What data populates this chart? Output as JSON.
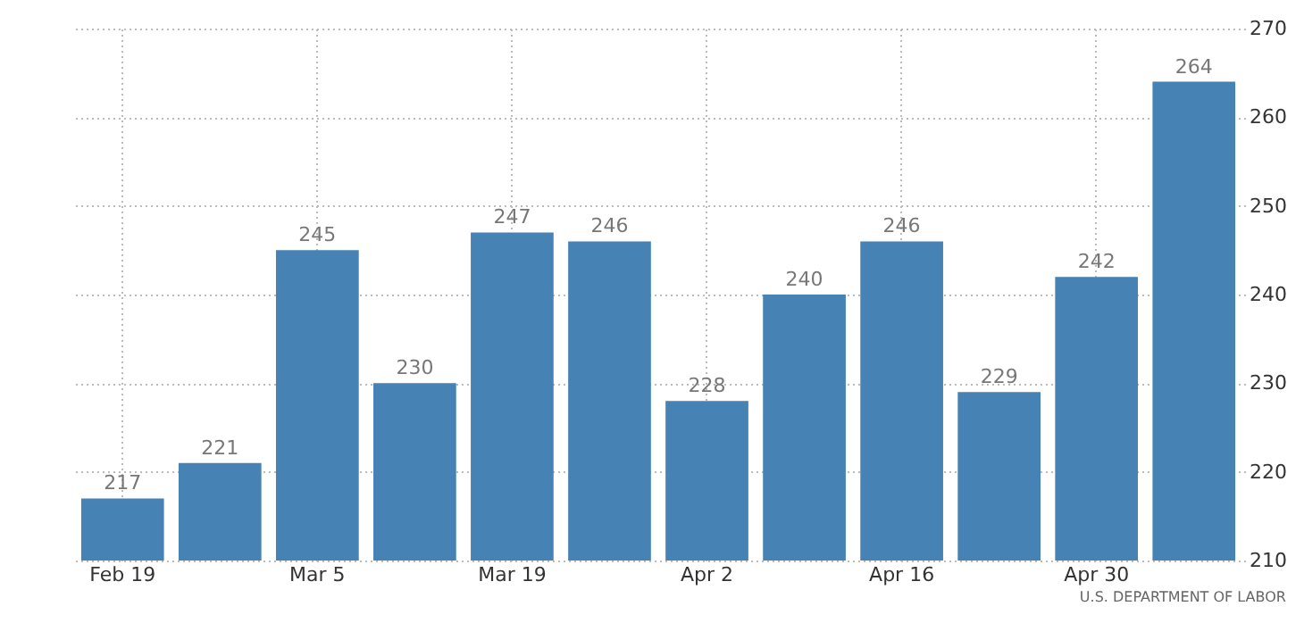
{
  "chart_data": {
    "type": "bar",
    "categories": [
      "Feb 19",
      null,
      "Mar 5",
      null,
      "Mar 19",
      null,
      "Apr 2",
      null,
      "Apr 16",
      null,
      "Apr 30",
      null
    ],
    "values": [
      217,
      221,
      245,
      230,
      247,
      246,
      228,
      240,
      246,
      229,
      242,
      264
    ],
    "color": "#4682b4",
    "ylim": [
      210,
      270
    ],
    "yticks": [
      210,
      220,
      230,
      240,
      250,
      260,
      270
    ],
    "grid": true,
    "data_labels": true,
    "annotations": [
      "U.S. DEPARTMENT OF LABOR"
    ]
  }
}
